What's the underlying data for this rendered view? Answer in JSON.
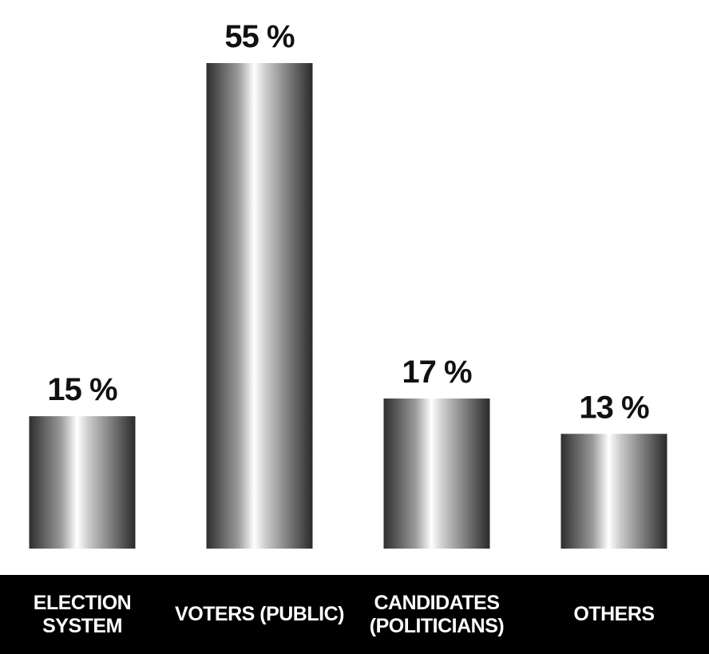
{
  "chart_data": {
    "type": "bar",
    "categories": [
      "ELECTION\nSYSTEM",
      "VOTERS (PUBLIC)",
      "CANDIDATES\n(POLITICIANS)",
      "OTHERS"
    ],
    "values": [
      15,
      55,
      17,
      13
    ],
    "value_labels": [
      "15 %",
      "55 %",
      "17 %",
      "13 %"
    ]
  }
}
